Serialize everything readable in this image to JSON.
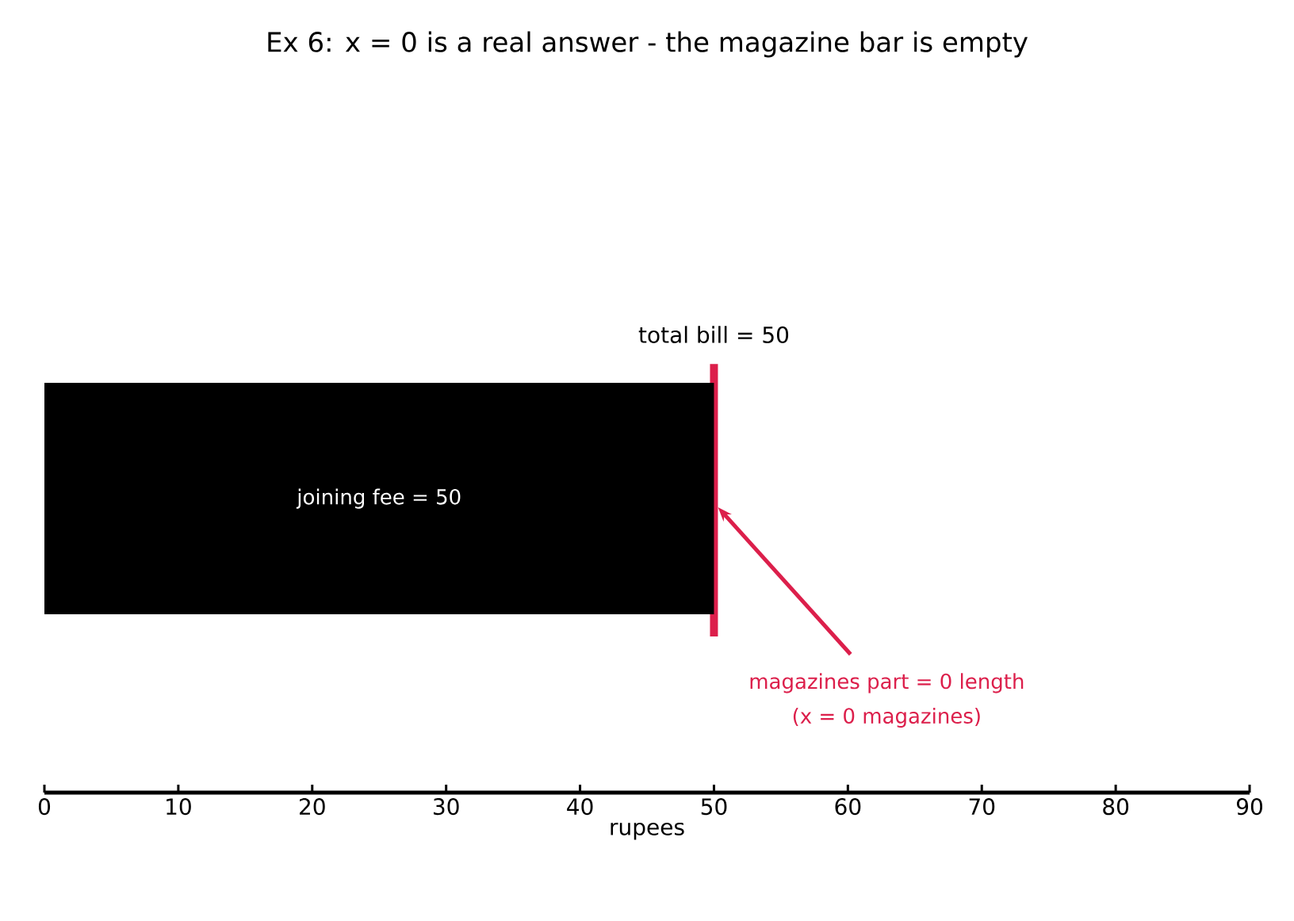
{
  "chart_data": {
    "type": "bar",
    "orientation": "horizontal",
    "stacked": true,
    "title": "Ex 6: x = 0 is a real answer - the magazine bar is empty",
    "xlabel": "rupees",
    "categories": [
      null
    ],
    "series": [
      {
        "color": "#000000",
        "values": [
          50
        ],
        "value_labels": [
          "joining fee = 50"
        ]
      }
    ],
    "xlim": [
      0,
      90
    ],
    "xticks": [
      0,
      10,
      20,
      30,
      40,
      50,
      60,
      70,
      80,
      90
    ],
    "ref_lines": [
      {
        "axis": "x",
        "value": 50,
        "label": "total bill = 50",
        "color": "#dc1f4b"
      }
    ],
    "annotations": [
      "magazines part = 0 length",
      "(x = 0 magazines)"
    ]
  }
}
